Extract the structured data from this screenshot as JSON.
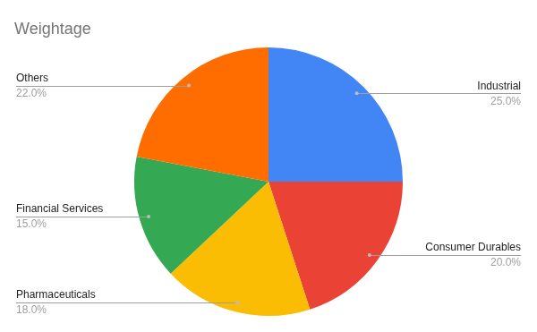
{
  "chart_data": {
    "type": "pie",
    "title": "Weightage",
    "categories": [
      "Industrial",
      "Consumer Durables",
      "Pharmaceuticals",
      "Financial Services",
      "Others"
    ],
    "values": [
      25,
      20,
      18,
      15,
      22
    ],
    "value_labels": [
      "25.0%",
      "20.0%",
      "18.0%",
      "15.0%",
      "22.0%"
    ],
    "colors": [
      "#4285f4",
      "#ea4335",
      "#fbbc04",
      "#34a853",
      "#ff6d01"
    ],
    "data_labels": true
  }
}
